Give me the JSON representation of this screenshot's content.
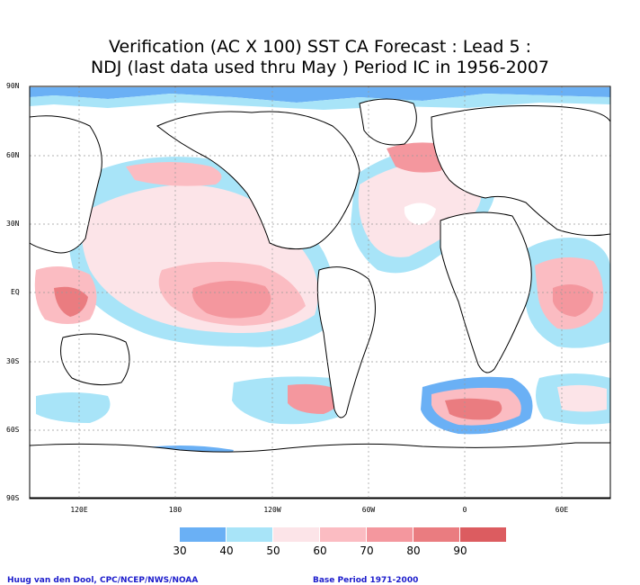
{
  "title": {
    "line1": "Verification (AC X 100) SST CA Forecast : Lead 5 :",
    "line2": "NDJ (last data used thru May ) Period IC in 1956-2007"
  },
  "lat_labels": [
    "90N",
    "60N",
    "30N",
    "EQ",
    "30S",
    "60S",
    "90S"
  ],
  "lon_labels": [
    "120E",
    "180",
    "120W",
    "60W",
    "0",
    "60E"
  ],
  "legend": {
    "values": [
      "30",
      "40",
      "50",
      "60",
      "70",
      "80",
      "90"
    ],
    "colors": [
      "#6ab0f5",
      "#a8e4f8",
      "#fce4e8",
      "#fbbcc2",
      "#f4979e",
      "#ea7c80",
      "#dc5c60"
    ]
  },
  "credit_left": "Huug van den Dool, CPC/NCEP/NWS/NOAA",
  "credit_right": "Base Period 1971-2000"
}
